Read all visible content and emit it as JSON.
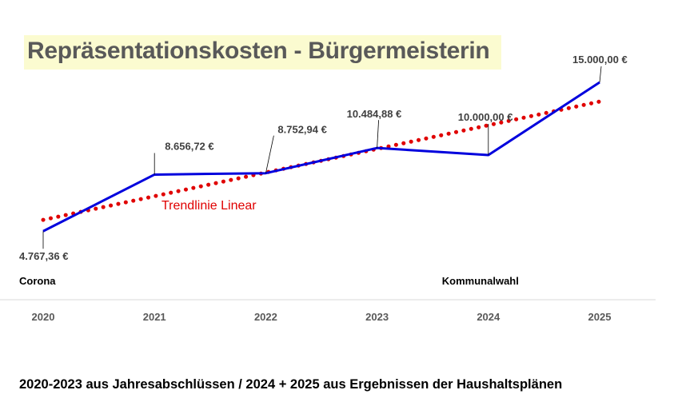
{
  "chart_data": {
    "type": "line",
    "title": "Repräsentationskosten - Bürgermeisterin",
    "categories": [
      "2020",
      "2021",
      "2022",
      "2023",
      "2024",
      "2025"
    ],
    "series": [
      {
        "name": "Repräsentationskosten",
        "color": "#0000dd",
        "values": [
          4767.36,
          8656.72,
          8752.94,
          10484.88,
          10000.0,
          15000.0
        ],
        "labels": [
          "4.767,36 €",
          "8.656,72 €",
          "8.752,94 €",
          "10.484,88 €",
          "10.000,00 €",
          "15.000,00 €"
        ]
      }
    ],
    "trendline": {
      "label": "Trendlinie Linear",
      "type": "linear",
      "color": "#e00000"
    },
    "annotations": [
      {
        "category": "2020",
        "text": "Corona"
      },
      {
        "category": "2024",
        "text": "Kommunalwahl"
      }
    ],
    "ylim": [
      0,
      15000
    ],
    "xlabel": "",
    "ylabel": "",
    "grid": false,
    "legend": "none"
  },
  "footer": "2020-2023  aus Jahresabschlüssen  /  2024 + 2025  aus Ergebnissen der Haushaltsplänen"
}
